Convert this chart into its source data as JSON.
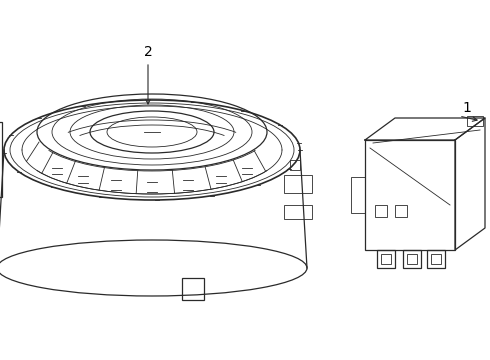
{
  "bg_color": "#ffffff",
  "line_color": "#2a2a2a",
  "label_color": "#000000",
  "fig_width": 4.9,
  "fig_height": 3.6,
  "dpi": 100,
  "label1": "1",
  "label2": "2"
}
